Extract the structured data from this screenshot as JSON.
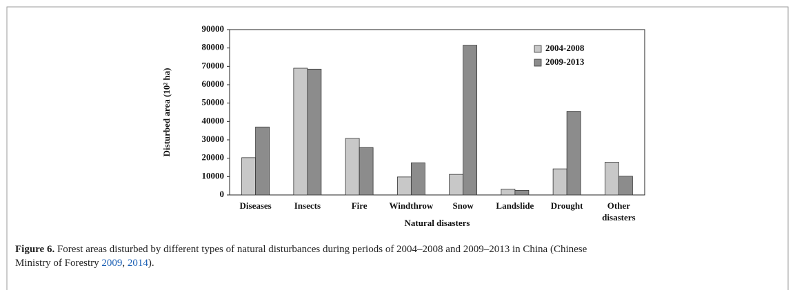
{
  "chart_data": {
    "type": "bar",
    "ylabel": "Disturbed area (10² ha)",
    "xlabel": "Natural disasters",
    "categories": [
      "Diseases",
      "Insects",
      "Fire",
      "Windthrow",
      "Snow",
      "Landslide",
      "Drought",
      "Other disasters"
    ],
    "series": [
      {
        "name": "2004-2008",
        "color": "#c8c8c8",
        "values": [
          20300,
          69000,
          30800,
          9800,
          11200,
          3200,
          14200,
          17800
        ]
      },
      {
        "name": "2009-2013",
        "color": "#8c8c8c",
        "values": [
          37000,
          68500,
          25800,
          17500,
          81500,
          2500,
          45500,
          10200
        ]
      }
    ],
    "ylim": [
      0,
      90000
    ],
    "yticks": [
      0,
      10000,
      20000,
      30000,
      40000,
      50000,
      60000,
      70000,
      80000,
      90000
    ],
    "grid": false,
    "legend": "upper right"
  },
  "caption": {
    "label": "Figure 6.",
    "text": "Forest areas disturbed by different types of natural disturbances during periods of 2004–2008 and 2009–2013 in China (Chinese Ministry of Forestry ",
    "refs": [
      "2009",
      "2014"
    ],
    "separator": ", ",
    "end": ")."
  }
}
